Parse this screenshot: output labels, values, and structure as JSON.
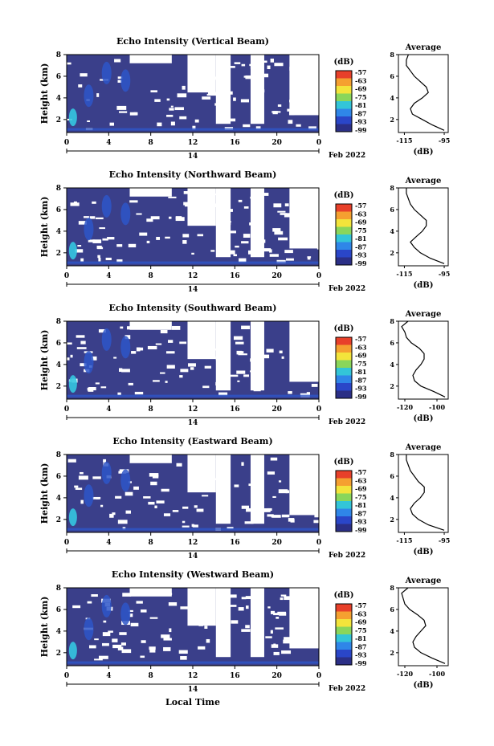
{
  "figure": {
    "colorbar_unit": "(dB)",
    "colorbar_ticks": [
      "-57",
      "-63",
      "-69",
      "-75",
      "-81",
      "-87",
      "-93",
      "-99"
    ],
    "colorbar_colors": [
      "#e8402a",
      "#f5a030",
      "#f3e43b",
      "#8ad65b",
      "#33c5d8",
      "#2f86e8",
      "#2a46c8",
      "#2b2f86"
    ],
    "heatmap_colors": {
      "low": "#3a3f8a",
      "mid": "#2e56c8",
      "high": "#35c6e0",
      "blank": "#ffffff"
    },
    "xlabel_bottom": "Local Time",
    "avg_title": "Average",
    "avg_xlabel": "(dB)"
  },
  "chart_data": [
    {
      "type": "heatmap",
      "title": "Echo Intensity (Vertical Beam)",
      "ylabel": "Height (km)",
      "yticks": [
        "2",
        "4",
        "6",
        "8"
      ],
      "ylim": [
        0.8,
        8
      ],
      "xticks": [
        "0",
        "4",
        "8",
        "12",
        "16",
        "20",
        "0"
      ],
      "xlim": [
        0,
        24
      ],
      "day_label": "14",
      "date_label": "Feb 2022",
      "average": {
        "title": "Average",
        "xlabel": "(dB)",
        "xticks": [
          "-115",
          "-95"
        ],
        "xlim": [
          -118,
          -93
        ],
        "yticks": [
          "2",
          "4",
          "6",
          "8"
        ],
        "ylim": [
          0.8,
          8
        ],
        "profile": [
          {
            "h": 1.0,
            "v": -95
          },
          {
            "h": 1.5,
            "v": -101
          },
          {
            "h": 2.0,
            "v": -106
          },
          {
            "h": 2.5,
            "v": -111
          },
          {
            "h": 3.0,
            "v": -112
          },
          {
            "h": 3.5,
            "v": -110
          },
          {
            "h": 4.0,
            "v": -106
          },
          {
            "h": 4.5,
            "v": -103
          },
          {
            "h": 5.0,
            "v": -104
          },
          {
            "h": 5.5,
            "v": -107
          },
          {
            "h": 6.0,
            "v": -110
          },
          {
            "h": 6.5,
            "v": -112
          },
          {
            "h": 7.0,
            "v": -114
          },
          {
            "h": 7.5,
            "v": -114
          },
          {
            "h": 8.0,
            "v": -113
          }
        ]
      }
    },
    {
      "type": "heatmap",
      "title": "Echo Intensity (Northward Beam)",
      "ylabel": "Height (km)",
      "yticks": [
        "2",
        "4",
        "6",
        "8"
      ],
      "ylim": [
        0.8,
        8
      ],
      "xticks": [
        "0",
        "4",
        "8",
        "12",
        "16",
        "20",
        "0"
      ],
      "xlim": [
        0,
        24
      ],
      "day_label": "14",
      "date_label": "Feb 2022",
      "average": {
        "title": "Average",
        "xlabel": "(dB)",
        "xticks": [
          "-115",
          "-95"
        ],
        "xlim": [
          -118,
          -93
        ],
        "yticks": [
          "2",
          "4",
          "6",
          "8"
        ],
        "ylim": [
          0.8,
          8
        ],
        "profile": [
          {
            "h": 1.0,
            "v": -95
          },
          {
            "h": 1.5,
            "v": -102
          },
          {
            "h": 2.0,
            "v": -107
          },
          {
            "h": 2.5,
            "v": -110
          },
          {
            "h": 3.0,
            "v": -112
          },
          {
            "h": 3.5,
            "v": -109
          },
          {
            "h": 4.0,
            "v": -106
          },
          {
            "h": 4.5,
            "v": -104
          },
          {
            "h": 5.0,
            "v": -104
          },
          {
            "h": 5.5,
            "v": -107
          },
          {
            "h": 6.0,
            "v": -110
          },
          {
            "h": 6.5,
            "v": -112
          },
          {
            "h": 7.0,
            "v": -113
          },
          {
            "h": 7.5,
            "v": -114
          },
          {
            "h": 8.0,
            "v": -114
          }
        ]
      }
    },
    {
      "type": "heatmap",
      "title": "Echo Intensity (Southward Beam)",
      "ylabel": "Height (km)",
      "yticks": [
        "2",
        "4",
        "6",
        "8"
      ],
      "ylim": [
        0.8,
        8
      ],
      "xticks": [
        "0",
        "4",
        "8",
        "12",
        "16",
        "20",
        "0"
      ],
      "xlim": [
        0,
        24
      ],
      "day_label": "14",
      "date_label": "Feb 2022",
      "average": {
        "title": "Average",
        "xlabel": "(dB)",
        "xticks": [
          "-120",
          "-100"
        ],
        "xlim": [
          -124,
          -93
        ],
        "yticks": [
          "2",
          "4",
          "6",
          "8"
        ],
        "ylim": [
          0.8,
          8
        ],
        "profile": [
          {
            "h": 1.0,
            "v": -95
          },
          {
            "h": 1.5,
            "v": -102
          },
          {
            "h": 2.0,
            "v": -110
          },
          {
            "h": 2.5,
            "v": -114
          },
          {
            "h": 3.0,
            "v": -115
          },
          {
            "h": 3.5,
            "v": -113
          },
          {
            "h": 4.0,
            "v": -110
          },
          {
            "h": 4.5,
            "v": -108
          },
          {
            "h": 5.0,
            "v": -108
          },
          {
            "h": 5.5,
            "v": -111
          },
          {
            "h": 6.0,
            "v": -116
          },
          {
            "h": 6.5,
            "v": -119
          },
          {
            "h": 7.0,
            "v": -120
          },
          {
            "h": 7.5,
            "v": -122
          },
          {
            "h": 8.0,
            "v": -118
          }
        ]
      }
    },
    {
      "type": "heatmap",
      "title": "Echo Intensity (Eastward Beam)",
      "ylabel": "Height (km)",
      "yticks": [
        "2",
        "4",
        "6",
        "8"
      ],
      "ylim": [
        0.8,
        8
      ],
      "xticks": [
        "0",
        "4",
        "8",
        "12",
        "16",
        "20",
        "0"
      ],
      "xlim": [
        0,
        24
      ],
      "day_label": "14",
      "date_label": "Feb 2022",
      "average": {
        "title": "Average",
        "xlabel": "(dB)",
        "xticks": [
          "-115",
          "-95"
        ],
        "xlim": [
          -118,
          -93
        ],
        "yticks": [
          "2",
          "4",
          "6",
          "8"
        ],
        "ylim": [
          0.8,
          8
        ],
        "profile": [
          {
            "h": 1.0,
            "v": -95
          },
          {
            "h": 1.5,
            "v": -103
          },
          {
            "h": 2.0,
            "v": -108
          },
          {
            "h": 2.5,
            "v": -111
          },
          {
            "h": 3.0,
            "v": -112
          },
          {
            "h": 3.5,
            "v": -110
          },
          {
            "h": 4.0,
            "v": -107
          },
          {
            "h": 4.5,
            "v": -105
          },
          {
            "h": 5.0,
            "v": -105
          },
          {
            "h": 5.5,
            "v": -108
          },
          {
            "h": 6.0,
            "v": -110
          },
          {
            "h": 6.5,
            "v": -112
          },
          {
            "h": 7.0,
            "v": -113
          },
          {
            "h": 7.5,
            "v": -114
          },
          {
            "h": 8.0,
            "v": -114
          }
        ]
      }
    },
    {
      "type": "heatmap",
      "title": "Echo Intensity (Westward Beam)",
      "ylabel": "Height (km)",
      "yticks": [
        "2",
        "4",
        "6",
        "8"
      ],
      "ylim": [
        0.8,
        8
      ],
      "xticks": [
        "0",
        "4",
        "8",
        "12",
        "16",
        "20",
        "0"
      ],
      "xlim": [
        0,
        24
      ],
      "day_label": "14",
      "date_label": "Feb 2022",
      "average": {
        "title": "Average",
        "xlabel": "(dB)",
        "xticks": [
          "-120",
          "-100"
        ],
        "xlim": [
          -124,
          -93
        ],
        "yticks": [
          "2",
          "4",
          "6",
          "8"
        ],
        "ylim": [
          0.8,
          8
        ],
        "profile": [
          {
            "h": 1.0,
            "v": -95
          },
          {
            "h": 1.5,
            "v": -103
          },
          {
            "h": 2.0,
            "v": -110
          },
          {
            "h": 2.5,
            "v": -114
          },
          {
            "h": 3.0,
            "v": -115
          },
          {
            "h": 3.5,
            "v": -113
          },
          {
            "h": 4.0,
            "v": -110
          },
          {
            "h": 4.5,
            "v": -107
          },
          {
            "h": 5.0,
            "v": -108
          },
          {
            "h": 5.5,
            "v": -112
          },
          {
            "h": 6.0,
            "v": -117
          },
          {
            "h": 6.5,
            "v": -120
          },
          {
            "h": 7.0,
            "v": -121
          },
          {
            "h": 7.5,
            "v": -122
          },
          {
            "h": 8.0,
            "v": -118
          }
        ]
      }
    }
  ]
}
